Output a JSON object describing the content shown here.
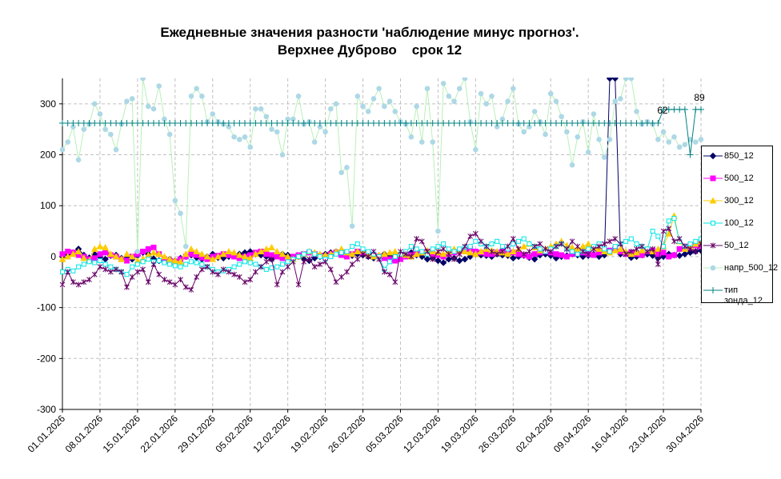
{
  "chart_data": {
    "type": "line",
    "title": "Ежедневные значения разности 'наблюдение минус прогноз'.",
    "subtitle": "Верхнее Дуброво    срок 12",
    "categories": [
      "01.01.2026",
      null,
      null,
      null,
      null,
      null,
      null,
      "08.01.2026",
      null,
      null,
      null,
      null,
      null,
      null,
      "15.01.2026",
      null,
      null,
      null,
      null,
      null,
      null,
      "22.01.2026",
      null,
      null,
      null,
      null,
      null,
      null,
      "29.01.2026",
      null,
      null,
      null,
      null,
      null,
      null,
      "05.02.2026",
      null,
      null,
      null,
      null,
      null,
      null,
      "12.02.2026",
      null,
      null,
      null,
      null,
      null,
      null,
      "19.02.2026",
      null,
      null,
      null,
      null,
      null,
      null,
      "26.02.2026",
      null,
      null,
      null,
      null,
      null,
      null,
      "05.03.2026",
      null,
      null,
      null,
      null,
      null,
      null,
      "12.03.2026",
      null,
      null,
      null,
      null,
      null,
      null,
      "19.03.2026",
      null,
      null,
      null,
      null,
      null,
      null,
      "26.03.2026",
      null,
      null,
      null,
      null,
      null,
      null,
      "02.04.2026",
      null,
      null,
      null,
      null,
      null,
      null,
      "09.04.2026",
      null,
      null,
      null,
      null,
      null,
      null,
      "16.04.2026",
      null,
      null,
      null,
      null,
      null,
      null,
      "23.04.2026",
      null,
      null,
      null,
      null,
      null,
      null,
      "30.04.2026"
    ],
    "ylim": [
      -300,
      350
    ],
    "yticks": [
      -300,
      -200,
      -100,
      0,
      100,
      200,
      300
    ],
    "grid": true,
    "annotations": [
      "62",
      "89"
    ],
    "series": [
      {
        "name": "850_12",
        "color": "#000066",
        "marker": "diamond",
        "values": [
          0,
          5,
          8,
          15,
          3,
          -2,
          5,
          0,
          -5,
          2,
          3,
          -3,
          0,
          -5,
          2,
          8,
          5,
          -4,
          -8,
          -10,
          -5,
          -8,
          -3,
          0,
          3,
          -2,
          -5,
          0,
          5,
          -2,
          -3,
          0,
          2,
          5,
          8,
          10,
          5,
          3,
          0,
          -5,
          2,
          5,
          3,
          -2,
          0,
          -5,
          -8,
          -3,
          0,
          5,
          8,
          10,
          12,
          5,
          2,
          5,
          3,
          0,
          -3,
          2,
          5,
          3,
          0,
          2,
          5,
          8,
          3,
          0,
          -5,
          -3,
          -8,
          -12,
          -5,
          -3,
          -8,
          -5,
          0,
          5,
          3,
          2,
          0,
          5,
          3,
          2,
          -3,
          0,
          2,
          -2,
          -5,
          3,
          5,
          2,
          -3,
          0,
          2,
          5,
          3,
          0,
          2,
          5,
          0,
          3,
          350,
          350,
          5,
          8,
          -2,
          0,
          3,
          5,
          2,
          -3,
          0,
          5,
          3,
          2,
          5,
          8,
          10,
          12
        ]
      },
      {
        "name": "500_12",
        "color": "#ff00ff",
        "marker": "square",
        "values": [
          5,
          10,
          8,
          3,
          0,
          -5,
          -3,
          5,
          8,
          3,
          0,
          -5,
          -8,
          0,
          5,
          10,
          15,
          18,
          5,
          -5,
          -8,
          -10,
          -5,
          0,
          5,
          3,
          -2,
          -5,
          0,
          2,
          5,
          3,
          0,
          -3,
          0,
          3,
          8,
          10,
          5,
          3,
          0,
          -3,
          -5,
          0,
          3,
          5,
          8,
          5,
          2,
          0,
          5,
          8,
          3,
          0,
          5,
          10,
          8,
          5,
          3,
          0,
          -3,
          -5,
          -8,
          -5,
          0,
          3,
          5,
          8,
          10,
          5,
          3,
          0,
          5,
          8,
          10,
          12,
          15,
          10,
          8,
          5,
          5,
          8,
          10,
          12,
          8,
          5,
          3,
          0,
          5,
          8,
          10,
          8,
          5,
          3,
          0,
          5,
          10,
          8,
          5,
          3,
          8,
          10,
          12,
          15,
          10,
          5,
          8,
          5,
          3,
          10,
          12,
          5,
          8,
          0,
          3,
          15,
          20,
          18,
          22,
          20
        ]
      },
      {
        "name": "300_12",
        "color": "#ffcc00",
        "marker": "triangle",
        "values": [
          -5,
          0,
          5,
          10,
          -3,
          -8,
          15,
          20,
          18,
          5,
          0,
          -5,
          5,
          0,
          -8,
          -5,
          3,
          8,
          5,
          0,
          -5,
          -8,
          -10,
          5,
          15,
          10,
          5,
          0,
          -5,
          0,
          5,
          10,
          8,
          3,
          0,
          -3,
          5,
          10,
          15,
          18,
          10,
          5,
          0,
          -5,
          0,
          5,
          10,
          8,
          5,
          3,
          5,
          10,
          15,
          8,
          5,
          10,
          12,
          5,
          0,
          3,
          5,
          8,
          10,
          5,
          3,
          0,
          5,
          8,
          12,
          10,
          8,
          5,
          10,
          15,
          12,
          10,
          8,
          5,
          10,
          15,
          12,
          10,
          8,
          5,
          10,
          15,
          20,
          25,
          18,
          12,
          15,
          20,
          25,
          30,
          22,
          18,
          15,
          20,
          25,
          18,
          15,
          10,
          8,
          12,
          15,
          10,
          5,
          8,
          12,
          15,
          10,
          15,
          20,
          45,
          80,
          30,
          15,
          20,
          25,
          30
        ]
      },
      {
        "name": "100_12",
        "color": "#00e5e5",
        "marker": "open-square",
        "values": [
          -30,
          -25,
          -28,
          -20,
          -15,
          -10,
          -12,
          -8,
          -15,
          -20,
          -25,
          -30,
          -35,
          -20,
          -15,
          -10,
          -5,
          -10,
          -8,
          -12,
          -15,
          -18,
          -20,
          -15,
          -10,
          -12,
          -15,
          -20,
          -25,
          -30,
          -28,
          -25,
          -20,
          -15,
          -10,
          -12,
          -15,
          -20,
          -25,
          -22,
          -20,
          -15,
          -10,
          -5,
          0,
          5,
          10,
          5,
          0,
          -5,
          0,
          5,
          8,
          10,
          20,
          25,
          15,
          10,
          5,
          0,
          -25,
          -10,
          0,
          5,
          10,
          20,
          15,
          10,
          5,
          15,
          20,
          25,
          15,
          10,
          15,
          18,
          20,
          30,
          25,
          20,
          25,
          30,
          20,
          15,
          25,
          30,
          35,
          25,
          20,
          15,
          10,
          15,
          20,
          25,
          15,
          10,
          5,
          10,
          15,
          20,
          25,
          15,
          10,
          20,
          25,
          30,
          35,
          25,
          20,
          15,
          50,
          40,
          20,
          70,
          75,
          30,
          20,
          25,
          30,
          35
        ]
      },
      {
        "name": "50_12",
        "color": "#660066",
        "marker": "star",
        "values": [
          -55,
          -30,
          -50,
          -55,
          -50,
          -45,
          -35,
          -20,
          -25,
          -30,
          -25,
          -30,
          -60,
          -40,
          -30,
          -25,
          -50,
          -15,
          -35,
          -45,
          -50,
          -55,
          -45,
          -60,
          -65,
          -40,
          -25,
          -20,
          -30,
          -35,
          -25,
          -30,
          -35,
          -40,
          -50,
          -45,
          -30,
          -20,
          -10,
          -5,
          -55,
          -30,
          -20,
          -10,
          -55,
          -10,
          -5,
          -20,
          -15,
          -10,
          -25,
          -50,
          -40,
          -30,
          -15,
          -5,
          5,
          0,
          10,
          -5,
          -30,
          -35,
          -50,
          10,
          5,
          0,
          35,
          30,
          10,
          -5,
          10,
          15,
          5,
          -5,
          5,
          20,
          40,
          45,
          30,
          20,
          10,
          5,
          10,
          20,
          35,
          15,
          5,
          10,
          20,
          25,
          15,
          10,
          20,
          25,
          15,
          30,
          20,
          10,
          5,
          15,
          20,
          25,
          30,
          35,
          25,
          5,
          10,
          15,
          20,
          10,
          15,
          -15,
          50,
          55,
          30,
          35,
          20,
          15,
          10,
          25
        ]
      },
      {
        "name": "напр_500_12",
        "color": "#add8e6",
        "line_color": "#b8f0b8",
        "marker": "circle",
        "values": [
          210,
          225,
          255,
          190,
          250,
          260,
          300,
          280,
          250,
          240,
          210,
          260,
          305,
          310,
          10,
          350,
          295,
          290,
          335,
          270,
          240,
          110,
          85,
          20,
          315,
          330,
          315,
          265,
          280,
          265,
          260,
          255,
          235,
          230,
          235,
          215,
          290,
          290,
          275,
          250,
          245,
          200,
          270,
          270,
          315,
          260,
          265,
          225,
          255,
          245,
          290,
          300,
          165,
          175,
          60,
          315,
          295,
          285,
          310,
          330,
          295,
          305,
          285,
          265,
          260,
          235,
          295,
          225,
          330,
          225,
          50,
          340,
          315,
          305,
          330,
          350,
          265,
          210,
          320,
          300,
          315,
          255,
          270,
          305,
          330,
          260,
          245,
          255,
          285,
          265,
          240,
          320,
          305,
          275,
          245,
          180,
          235,
          265,
          205,
          280,
          230,
          195,
          230,
          305,
          310,
          350,
          350,
          285,
          260,
          265,
          260,
          230,
          245,
          225,
          235,
          215,
          220,
          230,
          225,
          230
        ]
      },
      {
        "name": "тип зонда_12",
        "color": "#008080",
        "marker": "plus",
        "values": [
          262,
          262,
          262,
          262,
          262,
          262,
          262,
          262,
          262,
          262,
          262,
          262,
          262,
          262,
          262,
          262,
          262,
          262,
          262,
          262,
          262,
          262,
          262,
          262,
          262,
          262,
          262,
          262,
          262,
          262,
          262,
          262,
          262,
          262,
          262,
          262,
          262,
          262,
          262,
          262,
          262,
          262,
          262,
          262,
          262,
          262,
          262,
          262,
          262,
          262,
          262,
          262,
          262,
          262,
          262,
          262,
          262,
          262,
          262,
          262,
          262,
          262,
          262,
          262,
          262,
          262,
          262,
          262,
          262,
          262,
          262,
          262,
          262,
          262,
          262,
          262,
          262,
          262,
          262,
          262,
          262,
          262,
          262,
          262,
          262,
          262,
          262,
          262,
          262,
          262,
          262,
          262,
          262,
          262,
          262,
          262,
          262,
          262,
          262,
          262,
          262,
          262,
          262,
          262,
          262,
          262,
          262,
          262,
          262,
          262,
          262,
          262,
          289,
          289,
          289,
          289,
          289,
          200,
          289,
          289
        ]
      }
    ]
  }
}
